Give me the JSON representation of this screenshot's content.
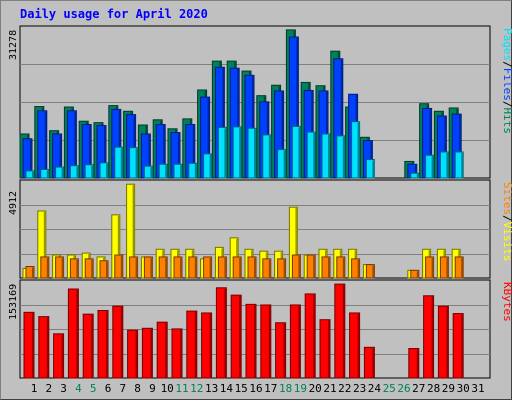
{
  "title": "Daily usage for April 2020",
  "colors": {
    "background": "#c0c0c0",
    "plot_bg": "#c0c0c0",
    "grid": "#808080",
    "hits": "#00805c",
    "files": "#0040ff",
    "pages": "#00e0ff",
    "visits": "#ffff00",
    "sites": "#ff8000",
    "kbytes": "#ff0000",
    "day_label": "#000000",
    "weekend_label": "#00805c",
    "title": "#0000ff"
  },
  "chart_data": [
    {
      "type": "bar",
      "panel": "hits-files-pages",
      "axis_max_label": "31278",
      "ylim": [
        0,
        31278
      ],
      "legend": [
        {
          "label": "Pages",
          "color": "#00e0ff"
        },
        {
          "label": "/",
          "color": "#000000"
        },
        {
          "label": "Files",
          "color": "#0040ff"
        },
        {
          "label": "/",
          "color": "#000000"
        },
        {
          "label": "Hits",
          "color": "#00805c"
        }
      ],
      "series": [
        {
          "name": "Hits",
          "values": [
            9300,
            15100,
            10000,
            15000,
            12000,
            11700,
            15300,
            14100,
            11200,
            12300,
            10400,
            12500,
            18600,
            24700,
            24700,
            22600,
            17400,
            19600,
            31300,
            20200,
            19500,
            26800,
            15000,
            8600,
            0,
            0,
            3500,
            15700,
            14100,
            14800,
            0
          ]
        },
        {
          "name": "Files",
          "values": [
            8300,
            14200,
            9300,
            14200,
            11300,
            11100,
            14500,
            13400,
            9300,
            11300,
            9600,
            11300,
            17100,
            23400,
            23200,
            21700,
            16100,
            18400,
            29800,
            18500,
            18400,
            25200,
            17700,
            7900,
            0,
            0,
            2900,
            14700,
            13100,
            13500,
            0
          ]
        },
        {
          "name": "Pages",
          "values": [
            1500,
            1800,
            2300,
            2600,
            2800,
            3200,
            6500,
            6400,
            2500,
            2900,
            2900,
            3100,
            5100,
            10700,
            10800,
            10500,
            9100,
            6000,
            10900,
            9700,
            9300,
            8900,
            11900,
            3900,
            0,
            0,
            1000,
            4800,
            5500,
            5500,
            0
          ]
        }
      ]
    },
    {
      "type": "bar",
      "panel": "visits-sites",
      "axis_max_label": "4912",
      "ylim": [
        0,
        4912
      ],
      "legend": [
        {
          "label": "Sites",
          "color": "#ff8000"
        },
        {
          "label": "/",
          "color": "#000000"
        },
        {
          "label": "Visits",
          "color": "#ffff00"
        }
      ],
      "series": [
        {
          "name": "Visits",
          "values": [
            500,
            3500,
            1200,
            1200,
            1300,
            1100,
            3300,
            4900,
            1100,
            1500,
            1500,
            1500,
            1000,
            1600,
            2100,
            1500,
            1400,
            1400,
            3700,
            1200,
            1500,
            1500,
            1500,
            700,
            0,
            0,
            400,
            1500,
            1500,
            1500,
            0
          ]
        },
        {
          "name": "Sites",
          "values": [
            600,
            1100,
            1100,
            1000,
            1000,
            900,
            1200,
            1100,
            1100,
            1100,
            1100,
            1100,
            1100,
            1100,
            1100,
            1100,
            1000,
            1000,
            1200,
            1200,
            1100,
            1100,
            1000,
            700,
            0,
            0,
            400,
            1100,
            1100,
            1100,
            0
          ]
        }
      ]
    },
    {
      "type": "bar",
      "panel": "kbytes",
      "axis_max_label": "153169",
      "ylim": [
        0,
        153169
      ],
      "legend": [
        {
          "label": "KBytes",
          "color": "#ff0000"
        }
      ],
      "series": [
        {
          "name": "KBytes",
          "values": [
            107000,
            100000,
            72000,
            145000,
            104000,
            110000,
            117000,
            78000,
            81000,
            91000,
            80000,
            109000,
            106000,
            147000,
            135000,
            120000,
            119000,
            90000,
            119000,
            137000,
            95000,
            153000,
            106000,
            50000,
            0,
            0,
            48000,
            134000,
            117000,
            105000,
            0
          ]
        }
      ]
    }
  ],
  "x_axis": {
    "days": [
      "1",
      "2",
      "3",
      "4",
      "5",
      "6",
      "7",
      "8",
      "9",
      "10",
      "11",
      "12",
      "13",
      "14",
      "15",
      "16",
      "17",
      "18",
      "19",
      "20",
      "21",
      "22",
      "23",
      "24",
      "25",
      "26",
      "27",
      "28",
      "29",
      "30",
      "31"
    ],
    "weekend_days": [
      4,
      5,
      11,
      12,
      18,
      19,
      25,
      26
    ]
  }
}
